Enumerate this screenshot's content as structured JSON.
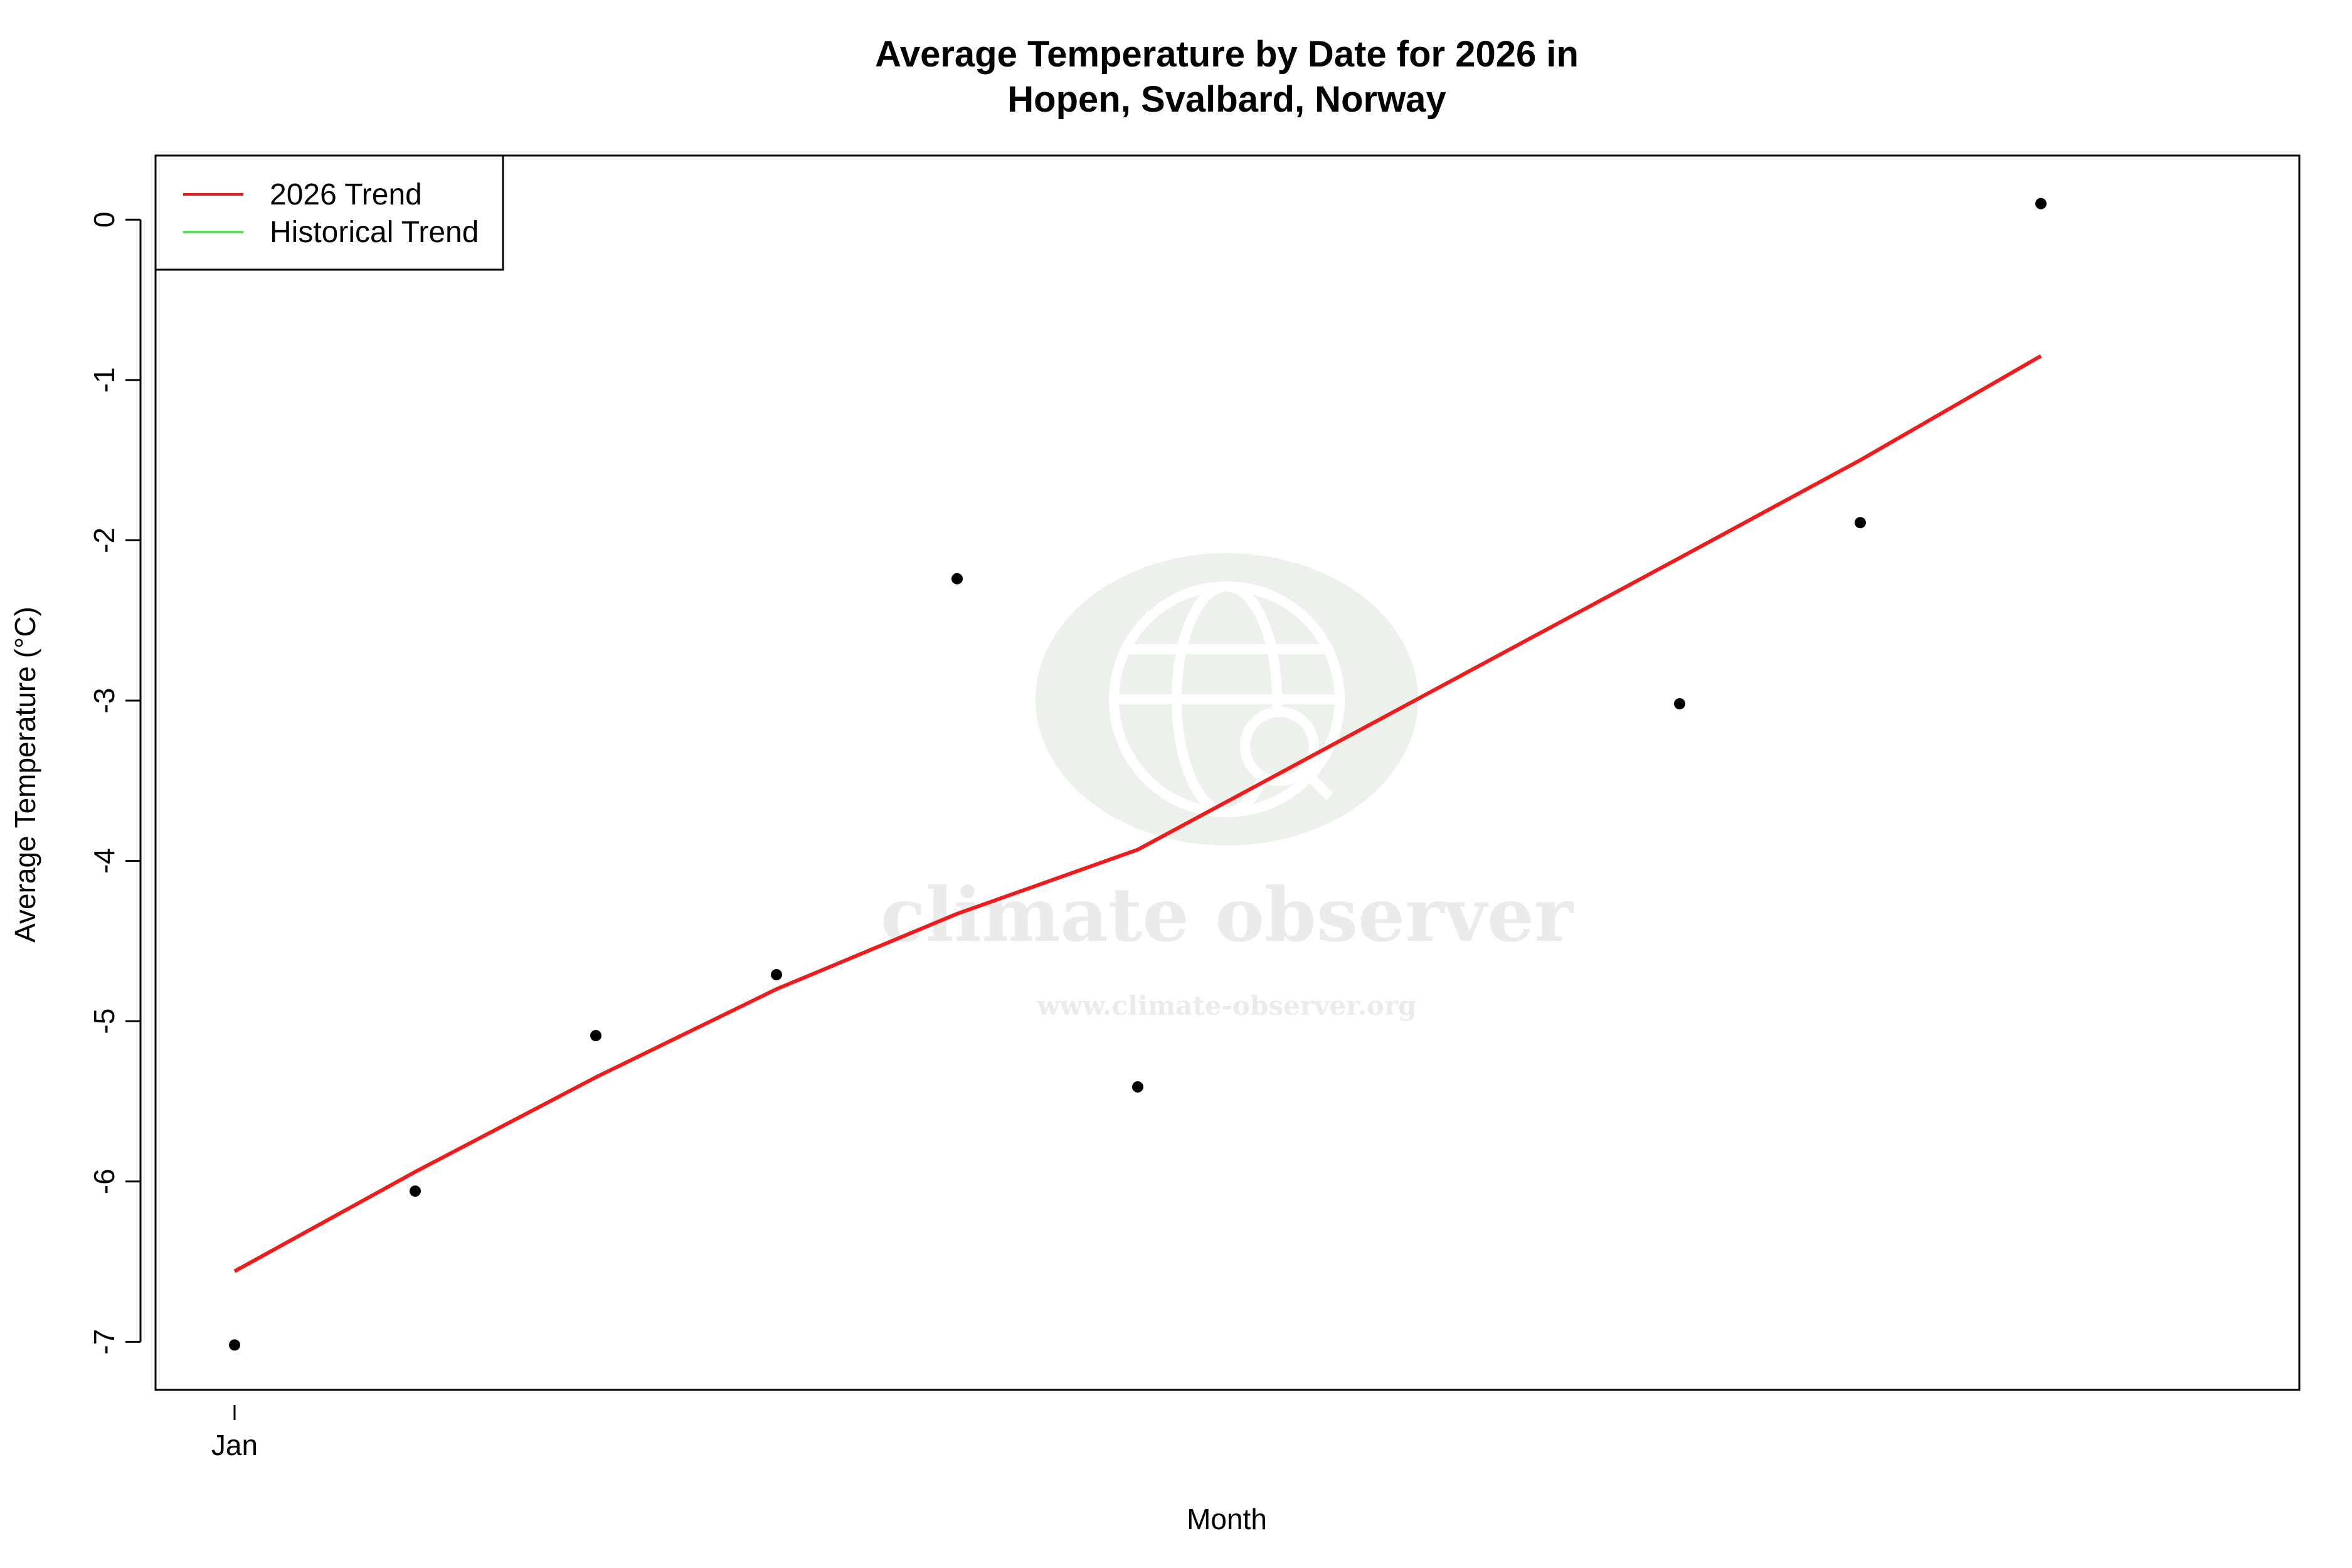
{
  "chart_data": {
    "type": "scatter",
    "title_line1": "Average Temperature by Date for 2026 in",
    "title_line2": "Hopen, Svalbard, Norway",
    "xlabel": "Month",
    "ylabel": "Average Temperature (°C)",
    "x_tick_labels": [
      "Jan"
    ],
    "ylim": [
      -7.3,
      0.4
    ],
    "y_ticks": [
      0,
      -1,
      -2,
      -3,
      -4,
      -5,
      -6,
      -7
    ],
    "grid": false,
    "legend": {
      "placement": "top-left",
      "entries": [
        {
          "label": "2026 Trend",
          "color": "#ee1c1c"
        },
        {
          "label": "Historical Trend",
          "color": "#55dd55"
        }
      ]
    },
    "points": {
      "color": "#000000",
      "x": [
        "Jan",
        "",
        "",
        "",
        "",
        "",
        "",
        "",
        "",
        "",
        ""
      ],
      "y": [
        -7.02,
        -6.06,
        -5.09,
        -4.71,
        -2.24,
        -5.41,
        null,
        null,
        -3.02,
        -1.89,
        0.1
      ]
    },
    "series": [
      {
        "name": "2026 Trend",
        "color": "#ee1c1c",
        "values": [
          -6.56,
          -5.94,
          -5.35,
          -4.8,
          -4.33,
          -3.93,
          null,
          null,
          -2.11,
          -1.5,
          -0.85
        ]
      }
    ],
    "watermark": {
      "name": "climate observer",
      "url": "www.climate-observer.org",
      "icon": "globe-search-icon"
    }
  }
}
